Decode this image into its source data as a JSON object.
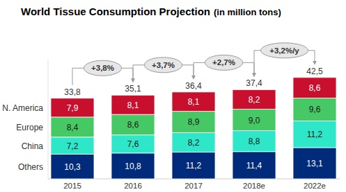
{
  "chart_data": {
    "type": "bar",
    "title": "World Tissue Consumption Projection",
    "subtitle": "(in million tons)",
    "stacked": true,
    "data_labels": true,
    "tick_labels": "x",
    "grid": false,
    "categories": [
      "2015",
      "2016",
      "2017",
      "2018e",
      "2022e"
    ],
    "ylim": [
      0,
      50
    ],
    "yticks": [],
    "series": [
      {
        "name": "Others",
        "color": "#002a7a",
        "values": [
          10.3,
          10.8,
          11.2,
          11.4,
          13.1
        ],
        "value_labels": [
          "10,3",
          "10,8",
          "11,2",
          "11,4",
          "13,1"
        ]
      },
      {
        "name": "China",
        "color": "#2ee6c8",
        "values": [
          7.2,
          7.6,
          8.2,
          8.8,
          11.2
        ],
        "value_labels": [
          "7,2",
          "7,6",
          "8,2",
          "8,8",
          "11,2"
        ]
      },
      {
        "name": "Europe",
        "color": "#46c864",
        "values": [
          8.4,
          8.6,
          8.9,
          9.0,
          9.6
        ],
        "value_labels": [
          "8,4",
          "8,6",
          "8,9",
          "9,0",
          "9,6"
        ]
      },
      {
        "name": "N. America",
        "color": "#c8102e",
        "values": [
          7.9,
          8.1,
          8.1,
          8.2,
          8.6
        ],
        "value_labels": [
          "7,9",
          "8,1",
          "8,1",
          "8,2",
          "8,6"
        ]
      }
    ],
    "totals": [
      33.8,
      35.1,
      36.4,
      37.4,
      42.5
    ],
    "total_labels": [
      "33,8",
      "35,1",
      "36,4",
      "37,4",
      "42,5"
    ],
    "annotations": [
      {
        "text": "+3,8%",
        "from": "2015",
        "to": "2016"
      },
      {
        "text": "+3,7%",
        "from": "2016",
        "to": "2017"
      },
      {
        "text": "+2,7%",
        "from": "2017",
        "to": "2018e"
      },
      {
        "text": "+3,2%/y",
        "from": "2018e",
        "to": "2022e"
      }
    ]
  }
}
